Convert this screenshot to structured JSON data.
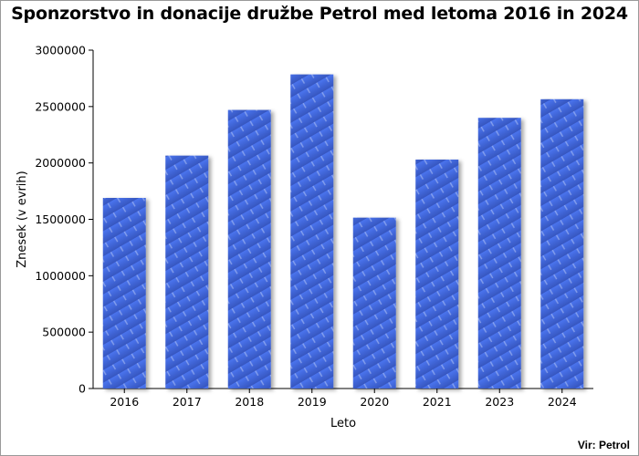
{
  "chart_data": {
    "type": "bar",
    "title": "Sponzorstvo in donacije družbe Petrol med letoma 2016 in 2024",
    "xlabel": "Leto",
    "ylabel": "Znesek (v evrih)",
    "categories": [
      "2016",
      "2017",
      "2018",
      "2019",
      "2020",
      "2021",
      "2023",
      "2024"
    ],
    "values": [
      1690000,
      2065000,
      2470000,
      2785000,
      1515000,
      2030000,
      2400000,
      2565000
    ],
    "ylim": [
      0,
      3000000
    ],
    "yticks": [
      "0",
      "500000",
      "1000000",
      "1500000",
      "2000000",
      "2500000",
      "3000000"
    ],
    "grid": false,
    "bar_color": "#4169e1",
    "source": "Vir: Petrol"
  }
}
